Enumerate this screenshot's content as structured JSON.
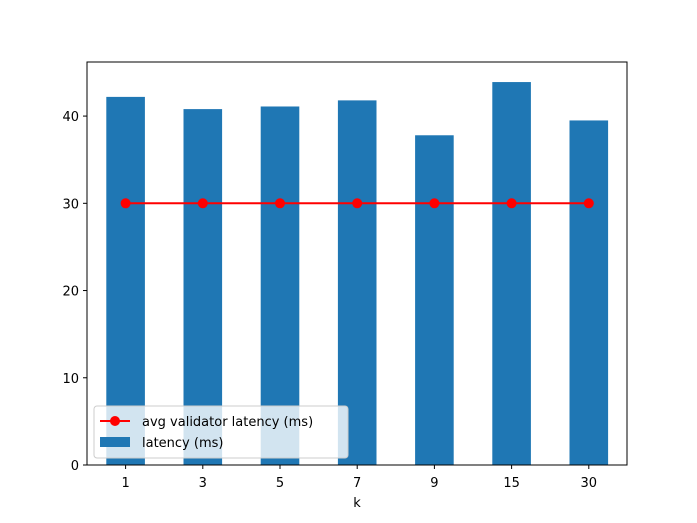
{
  "chart_data": {
    "type": "bar",
    "categories": [
      "1",
      "3",
      "5",
      "7",
      "9",
      "15",
      "30"
    ],
    "series": [
      {
        "name": "latency (ms)",
        "kind": "bar",
        "color": "#1f77b4",
        "values": [
          42.2,
          40.8,
          41.1,
          41.8,
          37.8,
          43.9,
          39.5
        ]
      },
      {
        "name": "avg validator latency (ms)",
        "kind": "line",
        "color": "#ff0000",
        "marker": "circle",
        "values": [
          30,
          30,
          30,
          30,
          30,
          30,
          30
        ]
      }
    ],
    "title": "",
    "xlabel": "k",
    "ylabel": "",
    "ylim": [
      0,
      46.2
    ],
    "yticks": [
      0,
      10,
      20,
      30,
      40
    ],
    "grid": false,
    "legend_position": "lower-left"
  }
}
